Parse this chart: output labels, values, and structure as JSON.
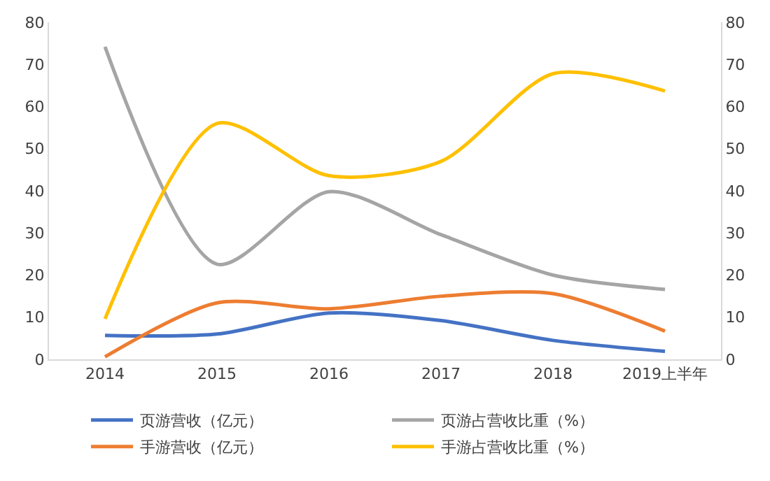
{
  "chart_data": {
    "type": "line",
    "categories": [
      "2014",
      "2015",
      "2016",
      "2017",
      "2018",
      "2019上半年"
    ],
    "series": [
      {
        "name": "页游营收（亿元）",
        "color": "#4472c4",
        "values": [
          5.7,
          6.0,
          11.0,
          9.2,
          4.5,
          1.9
        ]
      },
      {
        "name": "页游占营收比重（%）",
        "color": "#a5a5a5",
        "axis": "y2",
        "values": [
          74.2,
          22.6,
          39.8,
          29.6,
          20.0,
          16.6
        ]
      },
      {
        "name": "手游营收（亿元）",
        "color": "#ed7d31",
        "values": [
          0.6,
          13.4,
          12.0,
          15.0,
          15.6,
          6.7
        ]
      },
      {
        "name": "手游占营收比重（%）",
        "color": "#ffc000",
        "axis": "y2",
        "values": [
          9.6,
          56.0,
          43.6,
          47.0,
          67.8,
          63.7
        ]
      }
    ],
    "ylim": [
      0,
      80
    ],
    "yticks": [
      0,
      10,
      20,
      30,
      40,
      50,
      60,
      70,
      80
    ],
    "y2lim": [
      0,
      80
    ],
    "y2ticks": [
      0,
      10,
      20,
      30,
      40,
      50,
      60,
      70,
      80
    ],
    "legend": "bottom",
    "marker": "none",
    "line_style": "solid"
  }
}
